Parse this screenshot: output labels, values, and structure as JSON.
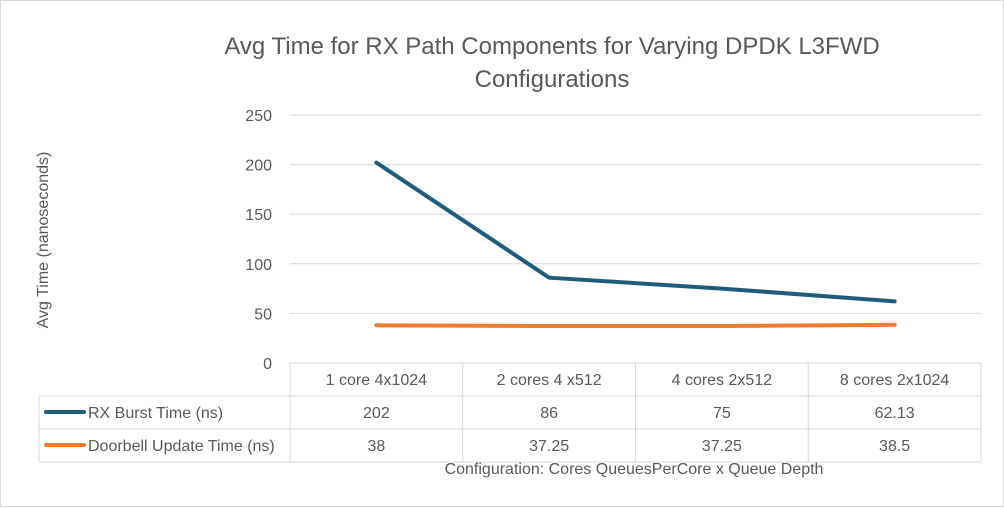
{
  "chart_data": {
    "type": "line",
    "title_lines": [
      "Avg Time for RX Path Components for Varying DPDK L3FWD",
      "Configurations"
    ],
    "xlabel": "Configuration: Cores QueuesPerCore x Queue Depth",
    "ylabel": "Avg Time (nanoseconds)",
    "ylim": [
      0,
      250
    ],
    "yticks": [
      "0",
      "50",
      "100",
      "150",
      "200",
      "250"
    ],
    "ytick_values": [
      0,
      50,
      100,
      150,
      200,
      250
    ],
    "grid": true,
    "legend": "data-table",
    "categories": [
      "1 core 4x1024",
      "2 cores 4 x512",
      "4 cores 2x512",
      "8 cores 2x1024"
    ],
    "series": [
      {
        "name": "RX Burst Time (ns)",
        "color": "#1F5C7A",
        "values": [
          202,
          86,
          75,
          62.13
        ],
        "labels": [
          "202",
          "86",
          "75",
          "62.13"
        ]
      },
      {
        "name": "Doorbell Update Time (ns)",
        "color": "#ED7D31",
        "values": [
          38,
          37.25,
          37.25,
          38.5
        ],
        "labels": [
          "38",
          "37.25",
          "37.25",
          "38.5"
        ]
      }
    ]
  },
  "colors": {
    "grid": "#d9d9d9",
    "text": "#595959",
    "border": "#d9d9d9"
  }
}
